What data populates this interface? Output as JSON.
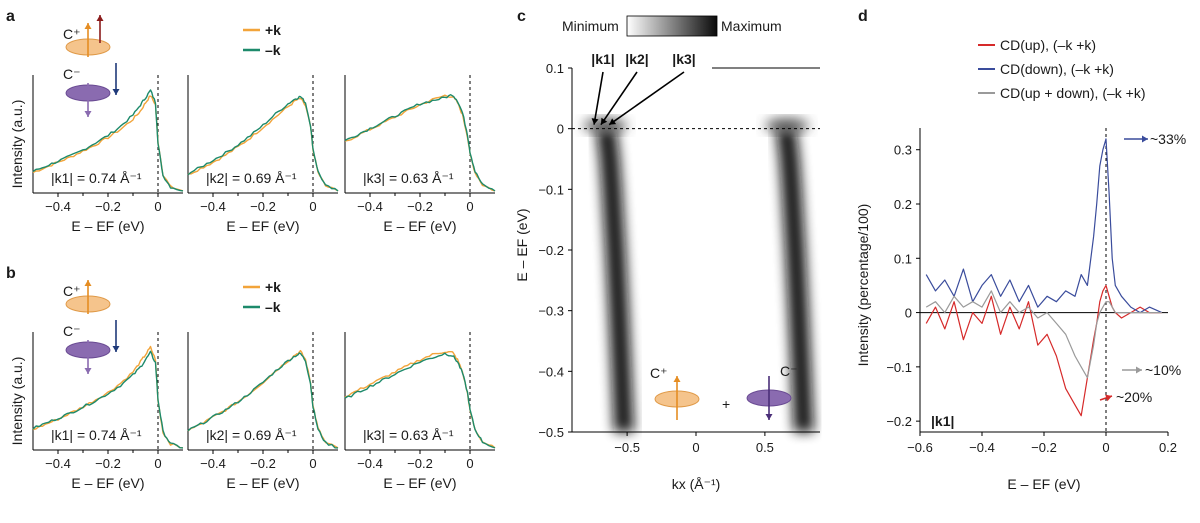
{
  "figure": {
    "panel_labels": [
      "a",
      "b",
      "c",
      "d"
    ],
    "polarization": {
      "c_plus": "C⁺",
      "c_minus": "C⁻"
    },
    "legend_ab": {
      "plus_k": "+k",
      "minus_k": "–k"
    }
  },
  "colors": {
    "plus_k": "#f2a43a",
    "minus_k": "#1d8a6b",
    "cd_up": "#d62a2a",
    "cd_down": "#3a4c9c",
    "cd_updown": "#9a9a9a",
    "c_plus_disk": "#f5c48c",
    "c_minus_disk": "#8a6bb0",
    "arrow_up": "#8b1c1c",
    "arrow_down": "#1f3a7a"
  },
  "chart_data": [
    {
      "id": "a",
      "type": "line",
      "ylabel": "Intensity (a.u.)",
      "xlabel": "E – EF (eV)",
      "xlim": [
        -0.5,
        0.1
      ],
      "x_ticks": [
        "−0.4",
        "−0.2",
        "0"
      ],
      "subpanels": [
        {
          "annotation": "|k1| = 0.74 Å⁻¹",
          "x": [
            -0.5,
            -0.45,
            -0.4,
            -0.35,
            -0.3,
            -0.25,
            -0.2,
            -0.15,
            -0.1,
            -0.07,
            -0.05,
            -0.03,
            -0.01,
            0.0,
            0.02,
            0.05,
            0.1
          ],
          "series": [
            {
              "name": "+k",
              "values": [
                0.2,
                0.25,
                0.3,
                0.35,
                0.41,
                0.47,
                0.54,
                0.62,
                0.72,
                0.8,
                0.88,
                0.95,
                0.86,
                0.5,
                0.18,
                0.06,
                0.02
              ]
            },
            {
              "name": "–k",
              "values": [
                0.21,
                0.26,
                0.31,
                0.36,
                0.42,
                0.49,
                0.56,
                0.65,
                0.76,
                0.86,
                0.93,
                1.0,
                0.88,
                0.48,
                0.17,
                0.06,
                0.02
              ]
            }
          ]
        },
        {
          "annotation": "|k2| = 0.69 Å⁻¹",
          "x": [
            -0.5,
            -0.45,
            -0.4,
            -0.35,
            -0.3,
            -0.25,
            -0.2,
            -0.15,
            -0.1,
            -0.07,
            -0.05,
            -0.03,
            -0.01,
            0.0,
            0.02,
            0.05,
            0.1
          ],
          "series": [
            {
              "name": "+k",
              "values": [
                0.18,
                0.24,
                0.3,
                0.37,
                0.45,
                0.54,
                0.64,
                0.74,
                0.84,
                0.9,
                0.92,
                0.85,
                0.65,
                0.42,
                0.2,
                0.07,
                0.02
              ]
            },
            {
              "name": "–k",
              "values": [
                0.19,
                0.25,
                0.32,
                0.39,
                0.47,
                0.56,
                0.66,
                0.77,
                0.87,
                0.92,
                0.94,
                0.88,
                0.66,
                0.43,
                0.21,
                0.07,
                0.02
              ]
            }
          ]
        },
        {
          "annotation": "|k3| = 0.63 Å⁻¹",
          "x": [
            -0.5,
            -0.45,
            -0.4,
            -0.35,
            -0.3,
            -0.25,
            -0.2,
            -0.15,
            -0.1,
            -0.07,
            -0.05,
            -0.03,
            -0.01,
            0.0,
            0.02,
            0.05,
            0.1
          ],
          "series": [
            {
              "name": "+k",
              "values": [
                0.5,
                0.56,
                0.62,
                0.68,
                0.74,
                0.8,
                0.86,
                0.91,
                0.95,
                0.94,
                0.88,
                0.76,
                0.55,
                0.38,
                0.2,
                0.08,
                0.02
              ]
            },
            {
              "name": "–k",
              "values": [
                0.51,
                0.57,
                0.63,
                0.69,
                0.75,
                0.81,
                0.87,
                0.9,
                0.93,
                0.96,
                0.9,
                0.78,
                0.57,
                0.4,
                0.21,
                0.08,
                0.02
              ]
            }
          ]
        }
      ]
    },
    {
      "id": "b",
      "type": "line",
      "ylabel": "Intensity (a.u.)",
      "xlabel": "E – EF (eV)",
      "xlim": [
        -0.5,
        0.1
      ],
      "x_ticks": [
        "−0.4",
        "−0.2",
        "0"
      ],
      "subpanels": [
        {
          "annotation": "|k1| = 0.74 Å⁻¹",
          "x": [
            -0.5,
            -0.45,
            -0.4,
            -0.35,
            -0.3,
            -0.25,
            -0.2,
            -0.15,
            -0.1,
            -0.07,
            -0.05,
            -0.03,
            -0.01,
            0.0,
            0.02,
            0.05,
            0.1
          ],
          "series": [
            {
              "name": "+k",
              "values": [
                0.2,
                0.25,
                0.3,
                0.36,
                0.42,
                0.49,
                0.56,
                0.65,
                0.76,
                0.86,
                0.93,
                1.0,
                0.88,
                0.48,
                0.17,
                0.06,
                0.02
              ]
            },
            {
              "name": "–k",
              "values": [
                0.21,
                0.26,
                0.31,
                0.36,
                0.42,
                0.48,
                0.55,
                0.63,
                0.73,
                0.81,
                0.88,
                0.95,
                0.85,
                0.49,
                0.18,
                0.06,
                0.02
              ]
            }
          ]
        },
        {
          "annotation": "|k2| = 0.69 Å⁻¹",
          "x": [
            -0.5,
            -0.45,
            -0.4,
            -0.35,
            -0.3,
            -0.25,
            -0.2,
            -0.15,
            -0.1,
            -0.07,
            -0.05,
            -0.03,
            -0.01,
            0.0,
            0.02,
            0.05,
            0.1
          ],
          "series": [
            {
              "name": "+k",
              "values": [
                0.19,
                0.25,
                0.32,
                0.39,
                0.47,
                0.56,
                0.66,
                0.77,
                0.87,
                0.93,
                0.96,
                0.88,
                0.66,
                0.43,
                0.21,
                0.07,
                0.02
              ]
            },
            {
              "name": "–k",
              "values": [
                0.19,
                0.25,
                0.32,
                0.39,
                0.47,
                0.56,
                0.66,
                0.77,
                0.87,
                0.92,
                0.94,
                0.87,
                0.65,
                0.42,
                0.2,
                0.07,
                0.02
              ]
            }
          ]
        },
        {
          "annotation": "|k3| = 0.63 Å⁻¹",
          "x": [
            -0.5,
            -0.45,
            -0.4,
            -0.35,
            -0.3,
            -0.25,
            -0.2,
            -0.15,
            -0.1,
            -0.07,
            -0.05,
            -0.03,
            -0.01,
            0.0,
            0.02,
            0.05,
            0.1
          ],
          "series": [
            {
              "name": "+k",
              "values": [
                0.52,
                0.58,
                0.64,
                0.7,
                0.76,
                0.82,
                0.88,
                0.93,
                0.96,
                0.95,
                0.88,
                0.76,
                0.55,
                0.38,
                0.2,
                0.08,
                0.02
              ]
            },
            {
              "name": "–k",
              "values": [
                0.5,
                0.56,
                0.62,
                0.68,
                0.74,
                0.8,
                0.86,
                0.9,
                0.94,
                0.92,
                0.86,
                0.75,
                0.56,
                0.39,
                0.2,
                0.08,
                0.02
              ]
            }
          ]
        }
      ]
    },
    {
      "id": "c",
      "type": "heatmap",
      "xlabel": "kx (Å⁻¹)",
      "ylabel": "E – EF (eV)",
      "xlim": [
        -0.9,
        0.9
      ],
      "ylim": [
        -0.5,
        0.1
      ],
      "x_ticks": [
        "−0.5",
        "0",
        "0.5"
      ],
      "y_ticks": [
        "0.1",
        "0",
        "−0.1",
        "−0.2",
        "−0.3",
        "−0.4",
        "−0.5"
      ],
      "colorbar": {
        "min_label": "Minimum",
        "max_label": "Maximum"
      },
      "k_labels": [
        "|k1|",
        "|k2|",
        "|k3|"
      ],
      "k_positions": [
        -0.74,
        -0.69,
        -0.63
      ],
      "bands": [
        {
          "kF": -0.69,
          "side": "left",
          "kF_at_bottom": -0.56
        },
        {
          "kF": 0.69,
          "side": "right",
          "kF_at_bottom": 0.56
        }
      ],
      "annotation": "C⁺ + C⁻"
    },
    {
      "id": "d",
      "type": "line",
      "xlabel": "E – EF (eV)",
      "ylabel": "Intensity (percentage/100)",
      "xlim": [
        -0.6,
        0.2
      ],
      "ylim": [
        -0.22,
        0.34
      ],
      "x_ticks": [
        "−0.6",
        "−0.4",
        "−0.2",
        "0",
        "0.2"
      ],
      "y_ticks": [
        "0.3",
        "0.2",
        "0.1",
        "0",
        "−0.1",
        "−0.2"
      ],
      "legend": [
        "CD(up), (–k +k)",
        "CD(down), (–k +k)",
        "CD(up + down), (–k +k)"
      ],
      "annotations": [
        "~33%",
        "~10%",
        "~20%",
        "|k1|"
      ],
      "x": [
        -0.58,
        -0.55,
        -0.52,
        -0.49,
        -0.46,
        -0.43,
        -0.4,
        -0.37,
        -0.34,
        -0.31,
        -0.28,
        -0.25,
        -0.22,
        -0.19,
        -0.16,
        -0.13,
        -0.1,
        -0.08,
        -0.06,
        -0.04,
        -0.03,
        -0.02,
        -0.01,
        0.0,
        0.01,
        0.02,
        0.03,
        0.05,
        0.08,
        0.11,
        0.14,
        0.18
      ],
      "series": [
        {
          "name": "CD(up), (–k +k)",
          "values": [
            -0.02,
            0.01,
            -0.03,
            0.02,
            -0.05,
            0.0,
            -0.02,
            0.03,
            -0.04,
            0.01,
            -0.03,
            0.02,
            -0.06,
            -0.04,
            -0.08,
            -0.14,
            -0.17,
            -0.19,
            -0.12,
            -0.05,
            -0.02,
            0.02,
            0.04,
            0.05,
            0.03,
            0.01,
            0.0,
            -0.01,
            0.0,
            0.01,
            0.0,
            0.0
          ]
        },
        {
          "name": "CD(down), (–k +k)",
          "values": [
            0.07,
            0.04,
            0.06,
            0.03,
            0.08,
            0.02,
            0.05,
            0.07,
            0.03,
            0.06,
            0.02,
            0.05,
            0.01,
            0.03,
            0.02,
            0.04,
            0.03,
            0.07,
            0.05,
            0.14,
            0.2,
            0.27,
            0.3,
            0.32,
            0.22,
            0.1,
            0.05,
            0.03,
            0.01,
            0.0,
            0.01,
            0.0
          ]
        },
        {
          "name": "CD(up + down), (–k +k)",
          "values": [
            0.01,
            0.02,
            0.0,
            0.03,
            0.01,
            0.02,
            0.01,
            0.04,
            0.0,
            0.02,
            0.0,
            0.01,
            -0.01,
            0.0,
            -0.02,
            -0.04,
            -0.08,
            -0.1,
            -0.12,
            -0.06,
            -0.02,
            0.0,
            0.01,
            0.02,
            0.02,
            0.01,
            0.0,
            0.0,
            0.0,
            0.0,
            0.0,
            0.0
          ]
        }
      ]
    }
  ]
}
